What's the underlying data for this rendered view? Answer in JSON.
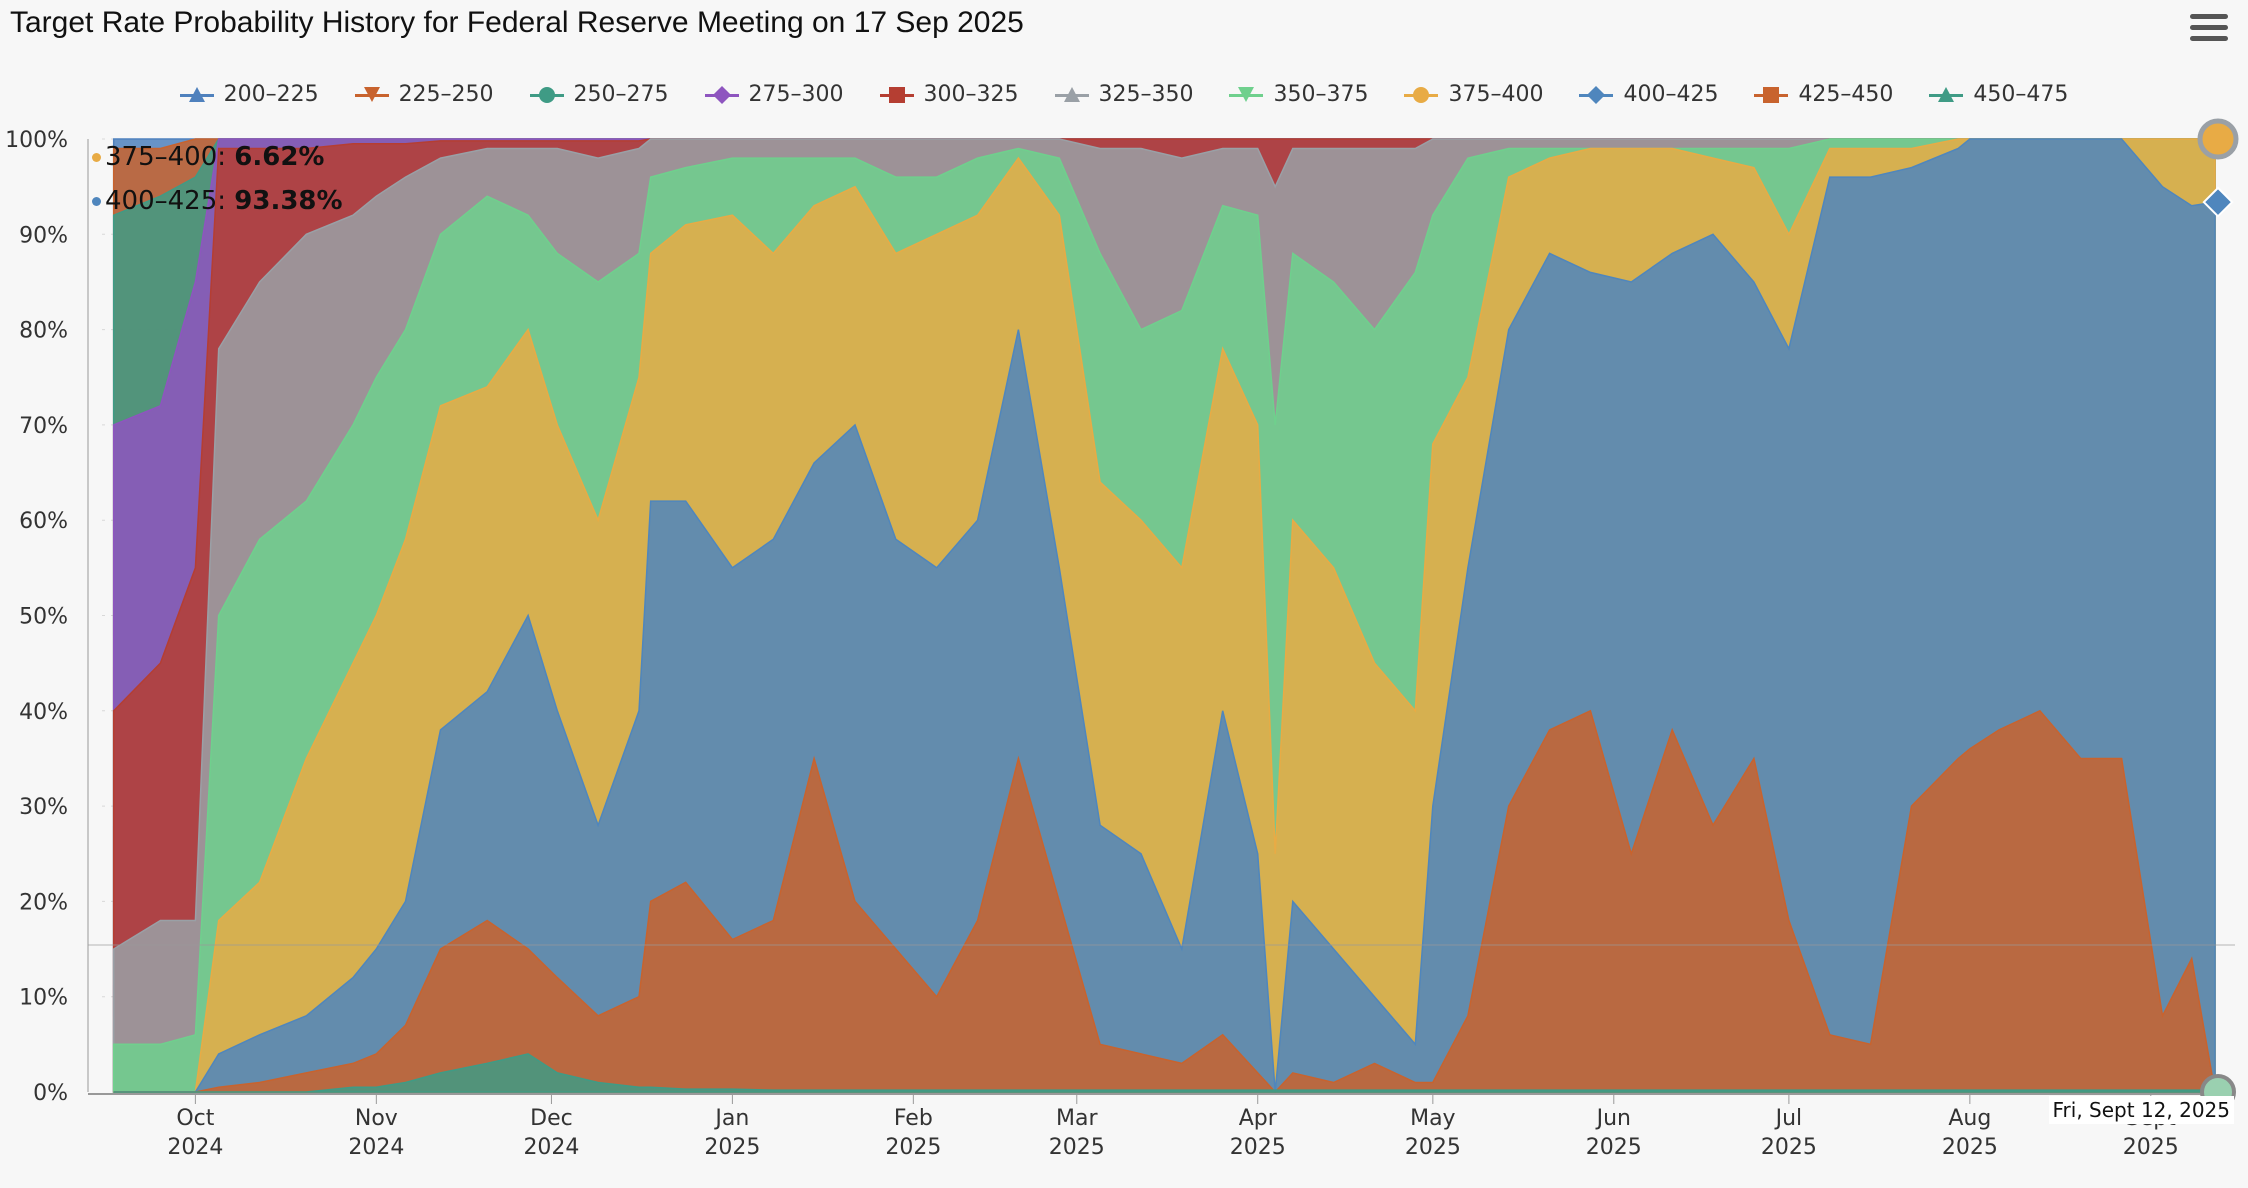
{
  "title": "Target Rate Probability History for Federal Reserve Meeting on 17 Sep 2025",
  "menu_icon": "hamburger-menu-icon",
  "legend": [
    {
      "label": "200–225",
      "color": "#4f81bd",
      "marker": "triangle-up"
    },
    {
      "label": "225–250",
      "color": "#c8632e",
      "marker": "triangle-down"
    },
    {
      "label": "250–275",
      "color": "#3f9b85",
      "marker": "circle"
    },
    {
      "label": "275–300",
      "color": "#8e55bf",
      "marker": "diamond"
    },
    {
      "label": "300–325",
      "color": "#b53e32",
      "marker": "square"
    },
    {
      "label": "325–350",
      "color": "#9aa0a6",
      "marker": "triangle-up"
    },
    {
      "label": "350–375",
      "color": "#6fd08d",
      "marker": "triangle-down"
    },
    {
      "label": "375–400",
      "color": "#e8ab45",
      "marker": "circle"
    },
    {
      "label": "400–425",
      "color": "#4f86bd",
      "marker": "diamond"
    },
    {
      "label": "425–450",
      "color": "#c8632e",
      "marker": "square"
    },
    {
      "label": "450–475",
      "color": "#3f9b85",
      "marker": "triangle-up"
    }
  ],
  "readout": [
    {
      "label": "375–400: ",
      "value": "6.62%",
      "color": "#e8ab45"
    },
    {
      "label": "400–425: ",
      "value": "93.38%",
      "color": "#4f86bd"
    }
  ],
  "tooltip_date": "Fri, Sept 12, 2025",
  "chart_data": {
    "type": "area",
    "stacked": true,
    "title": "Target Rate Probability History for Federal Reserve Meeting on 17 Sep 2025",
    "y_ticks": [
      "0%",
      "10%",
      "20%",
      "30%",
      "40%",
      "50%",
      "60%",
      "70%",
      "80%",
      "90%",
      "100%"
    ],
    "ylim": [
      0,
      100
    ],
    "xlim": [
      "2024-09-15",
      "2025-09-12"
    ],
    "x_ticks": [
      {
        "month": "Oct",
        "year": "2024",
        "date": "2024-10-01"
      },
      {
        "month": "Nov",
        "year": "2024",
        "date": "2024-11-01"
      },
      {
        "month": "Dec",
        "year": "2024",
        "date": "2024-12-01"
      },
      {
        "month": "Jan",
        "year": "2025",
        "date": "2025-01-01"
      },
      {
        "month": "Feb",
        "year": "2025",
        "date": "2025-02-01"
      },
      {
        "month": "Mar",
        "year": "2025",
        "date": "2025-03-01"
      },
      {
        "month": "Apr",
        "year": "2025",
        "date": "2025-04-01"
      },
      {
        "month": "May",
        "year": "2025",
        "date": "2025-05-01"
      },
      {
        "month": "Jun",
        "year": "2025",
        "date": "2025-06-01"
      },
      {
        "month": "Jul",
        "year": "2025",
        "date": "2025-07-01"
      },
      {
        "month": "Aug",
        "year": "2025",
        "date": "2025-08-01"
      },
      {
        "month": "Sept",
        "year": "2025",
        "date": "2025-09-01"
      }
    ],
    "series_order_bottom_to_top": [
      "450–475",
      "425–450",
      "400–425",
      "375–400",
      "350–375",
      "325–350",
      "300–325",
      "275–300",
      "250–275",
      "225–250",
      "200–225"
    ],
    "series_colors": {
      "450–475": "#3f9b85",
      "425–450": "#c8632e",
      "400–425": "#4f86bd",
      "375–400": "#e8ab45",
      "350–375": "#6fd08d",
      "325–350": "#9aa0a6",
      "300–325": "#b53e32",
      "275–300": "#8e55bf",
      "250–275": "#3f9b85",
      "225–250": "#c8632e",
      "200–225": "#4f81bd"
    },
    "cumulative_boundaries": {
      "x": [
        "2024-09-17",
        "2024-09-25",
        "2024-10-01",
        "2024-10-05",
        "2024-10-12",
        "2024-10-20",
        "2024-10-28",
        "2024-11-01",
        "2024-11-06",
        "2024-11-12",
        "2024-11-20",
        "2024-11-27",
        "2024-12-02",
        "2024-12-09",
        "2024-12-16",
        "2024-12-18",
        "2024-12-24",
        "2025-01-01",
        "2025-01-08",
        "2025-01-15",
        "2025-01-22",
        "2025-01-29",
        "2025-02-05",
        "2025-02-12",
        "2025-02-19",
        "2025-02-26",
        "2025-03-05",
        "2025-03-12",
        "2025-03-19",
        "2025-03-26",
        "2025-04-01",
        "2025-04-04",
        "2025-04-07",
        "2025-04-14",
        "2025-04-21",
        "2025-04-28",
        "2025-05-01",
        "2025-05-07",
        "2025-05-14",
        "2025-05-21",
        "2025-05-28",
        "2025-06-04",
        "2025-06-11",
        "2025-06-18",
        "2025-06-25",
        "2025-07-01",
        "2025-07-08",
        "2025-07-15",
        "2025-07-22",
        "2025-07-30",
        "2025-08-01",
        "2025-08-06",
        "2025-08-13",
        "2025-08-20",
        "2025-08-27",
        "2025-09-03",
        "2025-09-08",
        "2025-09-12"
      ],
      "upper_450_475": [
        0,
        0,
        0,
        0,
        0,
        0,
        0.5,
        0.5,
        1,
        2,
        3,
        4,
        2,
        1,
        0.5,
        0.5,
        0.3,
        0.3,
        0.2,
        0.2,
        0.2,
        0.2,
        0.2,
        0.2,
        0.2,
        0.2,
        0.2,
        0.2,
        0.2,
        0.2,
        0.2,
        0.2,
        0.2,
        0.2,
        0.2,
        0.2,
        0.2,
        0.2,
        0.2,
        0.2,
        0.2,
        0.2,
        0.2,
        0.2,
        0.2,
        0.2,
        0.2,
        0.2,
        0.2,
        0.2,
        0.2,
        0.2,
        0.2,
        0.2,
        0.2,
        0.2,
        0.2,
        0.2
      ],
      "upper_425_450": [
        0,
        0,
        0,
        0.5,
        1,
        2,
        3,
        4,
        7,
        15,
        18,
        15,
        12,
        8,
        10,
        20,
        22,
        16,
        18,
        35,
        20,
        15,
        10,
        18,
        35,
        20,
        5,
        4,
        3,
        6,
        2,
        0,
        2,
        1,
        3,
        1,
        1,
        8,
        30,
        38,
        40,
        25,
        38,
        28,
        35,
        18,
        6,
        5,
        30,
        35,
        36,
        38,
        40,
        35,
        35,
        8,
        14,
        0
      ],
      "upper_400_425": [
        0,
        0,
        0,
        4,
        6,
        8,
        12,
        15,
        20,
        38,
        42,
        50,
        40,
        28,
        40,
        62,
        62,
        55,
        58,
        66,
        70,
        58,
        55,
        60,
        80,
        55,
        28,
        25,
        15,
        40,
        25,
        0,
        20,
        15,
        10,
        5,
        30,
        55,
        80,
        88,
        86,
        85,
        88,
        90,
        85,
        78,
        96,
        96,
        97,
        99,
        100,
        100,
        100,
        100,
        100,
        95,
        93,
        93.38
      ],
      "upper_375_400": [
        0,
        0,
        0,
        18,
        22,
        35,
        45,
        50,
        58,
        72,
        74,
        80,
        70,
        60,
        75,
        88,
        91,
        92,
        88,
        93,
        95,
        88,
        90,
        92,
        98,
        92,
        64,
        60,
        55,
        78,
        70,
        25,
        60,
        55,
        45,
        40,
        68,
        75,
        96,
        98,
        99,
        99,
        99,
        98,
        97,
        90,
        99,
        99,
        99,
        100,
        100,
        100,
        100,
        100,
        100,
        100,
        100,
        100
      ],
      "upper_350_375": [
        5,
        5,
        6,
        50,
        58,
        62,
        70,
        75,
        80,
        90,
        94,
        92,
        88,
        85,
        88,
        96,
        97,
        98,
        98,
        98,
        98,
        96,
        96,
        98,
        99,
        98,
        88,
        80,
        82,
        93,
        92,
        70,
        88,
        85,
        80,
        86,
        92,
        98,
        99,
        99,
        99,
        99,
        99,
        99,
        99,
        99,
        100,
        100,
        100,
        100,
        100,
        100,
        100,
        100,
        100,
        100,
        100,
        100
      ],
      "upper_325_350": [
        15,
        18,
        18,
        78,
        85,
        90,
        92,
        94,
        96,
        98,
        99,
        99,
        99,
        98,
        99,
        100,
        100,
        100,
        100,
        100,
        100,
        100,
        100,
        100,
        100,
        100,
        99,
        99,
        98,
        99,
        99,
        95,
        99,
        99,
        99,
        99,
        100,
        100,
        100,
        100,
        100,
        100,
        100,
        100,
        100,
        100,
        100,
        100,
        100,
        100,
        100,
        100,
        100,
        100,
        100,
        100,
        100,
        100
      ],
      "upper_300_325": [
        40,
        45,
        55,
        99,
        99,
        99,
        99.5,
        99.5,
        99.5,
        99.8,
        99.8,
        99.8,
        99.8,
        99.8,
        99.8,
        100,
        100,
        100,
        100,
        100,
        100,
        100,
        100,
        100,
        100,
        100,
        100,
        100,
        100,
        100,
        100,
        100,
        100,
        100,
        100,
        100,
        100,
        100,
        100,
        100,
        100,
        100,
        100,
        100,
        100,
        100,
        100,
        100,
        100,
        100,
        100,
        100,
        100,
        100,
        100,
        100,
        100,
        100
      ],
      "upper_275_300": [
        70,
        72,
        85,
        100,
        100,
        100,
        100,
        100,
        100,
        100,
        100,
        100,
        100,
        100,
        100,
        100,
        100,
        100,
        100,
        100,
        100,
        100,
        100,
        100,
        100,
        100,
        100,
        100,
        100,
        100,
        100,
        100,
        100,
        100,
        100,
        100,
        100,
        100,
        100,
        100,
        100,
        100,
        100,
        100,
        100,
        100,
        100,
        100,
        100,
        100,
        100,
        100,
        100,
        100,
        100,
        100,
        100,
        100
      ],
      "upper_250_275": [
        92,
        94,
        96,
        100,
        100,
        100,
        100,
        100,
        100,
        100,
        100,
        100,
        100,
        100,
        100,
        100,
        100,
        100,
        100,
        100,
        100,
        100,
        100,
        100,
        100,
        100,
        100,
        100,
        100,
        100,
        100,
        100,
        100,
        100,
        100,
        100,
        100,
        100,
        100,
        100,
        100,
        100,
        100,
        100,
        100,
        100,
        100,
        100,
        100,
        100,
        100,
        100,
        100,
        100,
        100,
        100,
        100,
        100
      ],
      "upper_225_250": [
        99,
        99,
        100,
        100,
        100,
        100,
        100,
        100,
        100,
        100,
        100,
        100,
        100,
        100,
        100,
        100,
        100,
        100,
        100,
        100,
        100,
        100,
        100,
        100,
        100,
        100,
        100,
        100,
        100,
        100,
        100,
        100,
        100,
        100,
        100,
        100,
        100,
        100,
        100,
        100,
        100,
        100,
        100,
        100,
        100,
        100,
        100,
        100,
        100,
        100,
        100,
        100,
        100,
        100,
        100,
        100,
        100,
        100
      ],
      "upper_200_225": [
        100,
        100,
        100,
        100,
        100,
        100,
        100,
        100,
        100,
        100,
        100,
        100,
        100,
        100,
        100,
        100,
        100,
        100,
        100,
        100,
        100,
        100,
        100,
        100,
        100,
        100,
        100,
        100,
        100,
        100,
        100,
        100,
        100,
        100,
        100,
        100,
        100,
        100,
        100,
        100,
        100,
        100,
        100,
        100,
        100,
        100,
        100,
        100,
        100,
        100,
        100,
        100,
        100,
        100,
        100,
        100,
        100,
        100
      ]
    },
    "final_values": {
      "375–400": 6.62,
      "400–425": 93.38
    }
  }
}
